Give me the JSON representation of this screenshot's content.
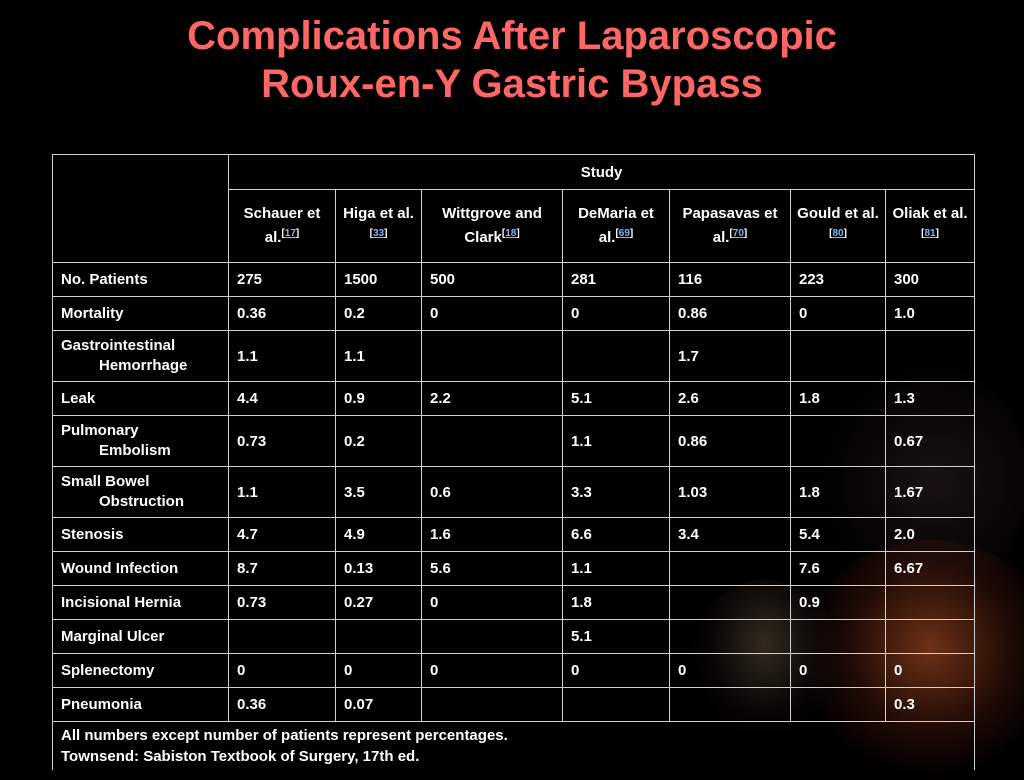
{
  "title": {
    "line1": "Complications After Laparoscopic",
    "line2": "Roux-en-Y Gastric Bypass"
  },
  "table": {
    "group_header": "Study",
    "columns": [
      {
        "label": "Schauer et al.",
        "ref": "17"
      },
      {
        "label": "Higa et al.",
        "ref": "33"
      },
      {
        "label": "Wittgrove and Clark",
        "ref": "18"
      },
      {
        "label": "DeMaria et al.",
        "ref": "69"
      },
      {
        "label": "Papasavas et al.",
        "ref": "70"
      },
      {
        "label": "Gould et al.",
        "ref": "80"
      },
      {
        "label": "Oliak et al.",
        "ref": "81"
      }
    ],
    "rows": [
      {
        "label": "No. Patients",
        "values": [
          "275",
          "1500",
          "500",
          "281",
          "116",
          "223",
          "300"
        ]
      },
      {
        "label": "Mortality",
        "values": [
          "0.36",
          "0.2",
          "0",
          "0",
          "0.86",
          "0",
          "1.0"
        ]
      },
      {
        "label_line1": "Gastrointestinal",
        "label_line2": "Hemorrhage",
        "values": [
          "1.1",
          "1.1",
          "",
          "",
          "1.7",
          "",
          ""
        ]
      },
      {
        "label": "Leak",
        "values": [
          "4.4",
          "0.9",
          "2.2",
          "5.1",
          "2.6",
          "1.8",
          "1.3"
        ]
      },
      {
        "label_line1": "Pulmonary",
        "label_line2": "Embolism",
        "values": [
          "0.73",
          "0.2",
          "",
          "1.1",
          "0.86",
          "",
          "0.67"
        ]
      },
      {
        "label_line1": "Small Bowel",
        "label_line2": "Obstruction",
        "values": [
          "1.1",
          "3.5",
          "0.6",
          "3.3",
          "1.03",
          "1.8",
          "1.67"
        ]
      },
      {
        "label": "Stenosis",
        "values": [
          "4.7",
          "4.9",
          "1.6",
          "6.6",
          "3.4",
          "5.4",
          "2.0"
        ]
      },
      {
        "label": "Wound Infection",
        "values": [
          "8.7",
          "0.13",
          "5.6",
          "1.1",
          "",
          "7.6",
          "6.67"
        ]
      },
      {
        "label": "Incisional Hernia",
        "values": [
          "0.73",
          "0.27",
          "0",
          "1.8",
          "",
          "0.9",
          ""
        ]
      },
      {
        "label": "Marginal Ulcer",
        "values": [
          "",
          "",
          "",
          "5.1",
          "",
          "",
          ""
        ]
      },
      {
        "label": "Splenectomy",
        "values": [
          "0",
          "0",
          "0",
          "0",
          "0",
          "0",
          "0"
        ]
      },
      {
        "label": "Pneumonia",
        "values": [
          "0.36",
          "0.07",
          "",
          "",
          "",
          "",
          "0.3"
        ]
      }
    ],
    "footnote_line1": "All numbers except number of patients represent percentages.",
    "footnote_line2": "Townsend: Sabiston Textbook of Surgery, 17th ed."
  },
  "colors": {
    "background": "#000000",
    "title": "#ff6666",
    "text": "#ffffff",
    "link": "#7ab8ff",
    "border": "#d0d0d0"
  }
}
